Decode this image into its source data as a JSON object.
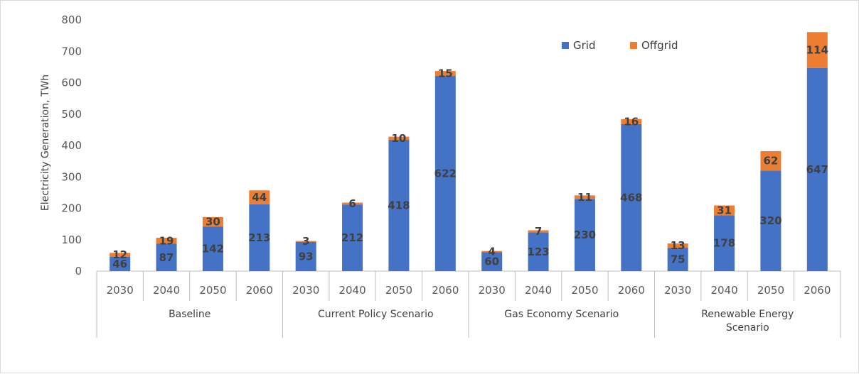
{
  "chart_data": {
    "type": "bar",
    "stacked": true,
    "title": "",
    "xlabel": "",
    "ylabel": "Electricity Generation, TWh",
    "ylim": [
      0,
      800
    ],
    "yticks": [
      0,
      100,
      200,
      300,
      400,
      500,
      600,
      700,
      800
    ],
    "grid": false,
    "legend_position": "top-right",
    "groups": [
      {
        "label": "Baseline",
        "categories": [
          "2030",
          "2040",
          "2050",
          "2060"
        ]
      },
      {
        "label": "Current Policy Scenario",
        "categories": [
          "2030",
          "2040",
          "2050",
          "2060"
        ]
      },
      {
        "label": "Gas Economy Scenario",
        "categories": [
          "2030",
          "2040",
          "2050",
          "2060"
        ]
      },
      {
        "label": "Renewable Energy Scenario",
        "categories": [
          "2030",
          "2040",
          "2050",
          "2060"
        ]
      }
    ],
    "series": [
      {
        "name": "Grid",
        "color": "#4472C4",
        "values": [
          46,
          87,
          142,
          213,
          93,
          212,
          418,
          622,
          60,
          123,
          230,
          468,
          75,
          178,
          320,
          647
        ]
      },
      {
        "name": "Offgrid",
        "color": "#ED7D31",
        "values": [
          12,
          19,
          30,
          44,
          3,
          6,
          10,
          15,
          4,
          7,
          11,
          16,
          13,
          31,
          62,
          114
        ]
      }
    ]
  }
}
